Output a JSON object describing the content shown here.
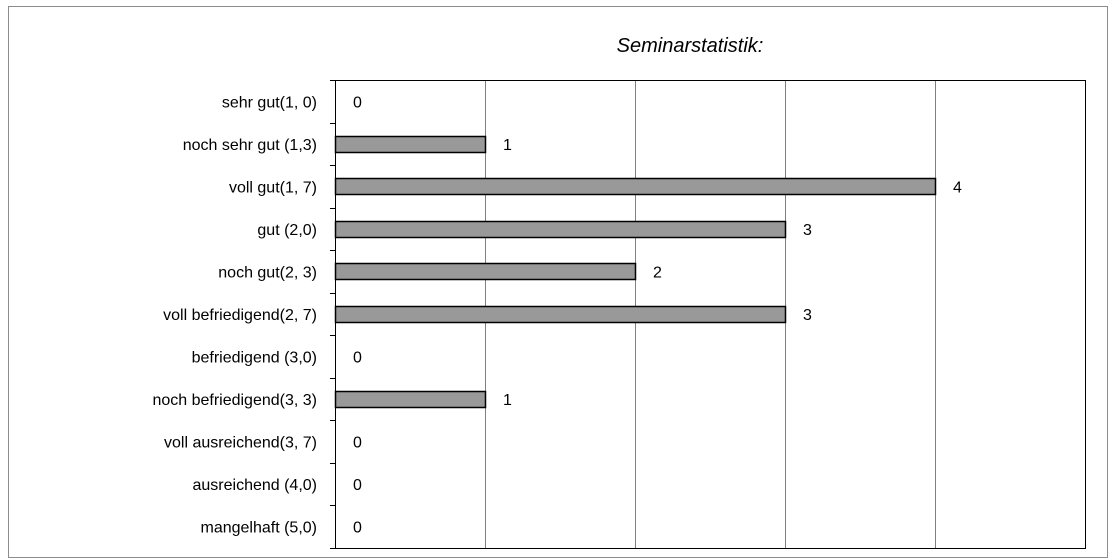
{
  "chart_data": {
    "type": "bar",
    "orientation": "horizontal",
    "title": "Seminarstatistik:",
    "categories": [
      "sehr gut(1, 0)",
      "noch sehr gut (1,3)",
      "voll gut(1, 7)",
      "gut (2,0)",
      "noch gut(2, 3)",
      "voll befriedigend(2, 7)",
      "befriedigend (3,0)",
      "noch befriedigend(3, 3)",
      "voll ausreichend(3, 7)",
      "ausreichend (4,0)",
      "mangelhaft (5,0)"
    ],
    "values": [
      0,
      1,
      4,
      3,
      2,
      3,
      0,
      1,
      0,
      0,
      0
    ],
    "xlim": [
      0,
      5
    ],
    "grid": true,
    "data_labels": true,
    "bar_color": "#999999",
    "bar_edge_color": "#000000",
    "grid_color": "#808080"
  }
}
